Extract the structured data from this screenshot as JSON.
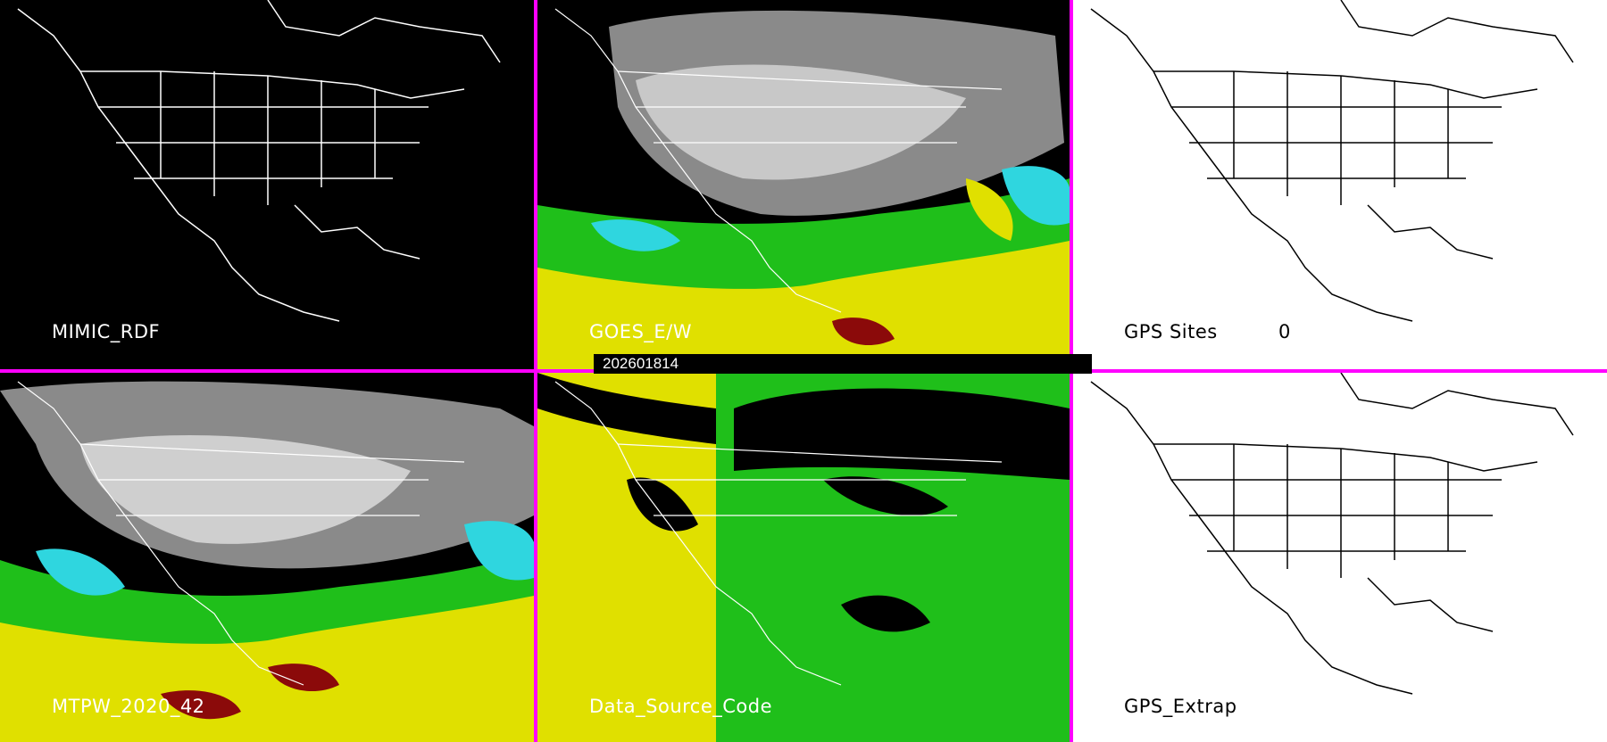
{
  "panels": {
    "mimic_rdf": {
      "label": "MIMIC_RDF"
    },
    "goes_ew": {
      "label": "GOES_E/W"
    },
    "gps_sites": {
      "label": "GPS Sites",
      "count": "0"
    },
    "mtpw": {
      "label": "MTPW_2020_42"
    },
    "data_source_code": {
      "label": "Data_Source_Code"
    },
    "gps_extrap": {
      "label": "GPS_Extrap"
    }
  },
  "timestamp": "202601814",
  "colors": {
    "divider": "#ff00ff",
    "green": "#22c41e",
    "yellow": "#e6e600",
    "cyan": "#2fd6df",
    "dark_red": "#8b0a0a",
    "gray": "#9a9a9a"
  }
}
